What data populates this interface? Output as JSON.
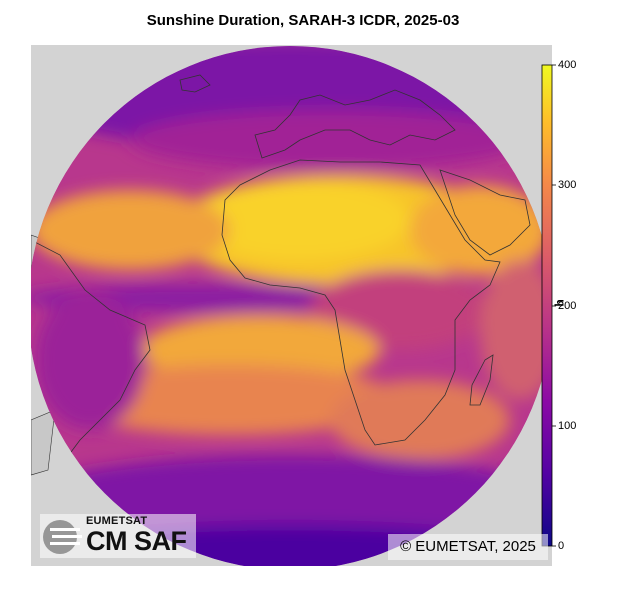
{
  "title": "Sunshine Duration, SARAH-3 ICDR, 2025-03",
  "colorbar": {
    "unit_label": "h",
    "ticks": [
      "0",
      "100",
      "200",
      "300",
      "400"
    ],
    "range": [
      0,
      400
    ],
    "colormap": "plasma"
  },
  "logo": {
    "org": "EUMETSAT",
    "product": "CM SAF"
  },
  "copyright": "© EUMETSAT, 2025",
  "colors": {
    "land_outside_disk": "#d3d3d3",
    "coastline": "#333333"
  }
}
